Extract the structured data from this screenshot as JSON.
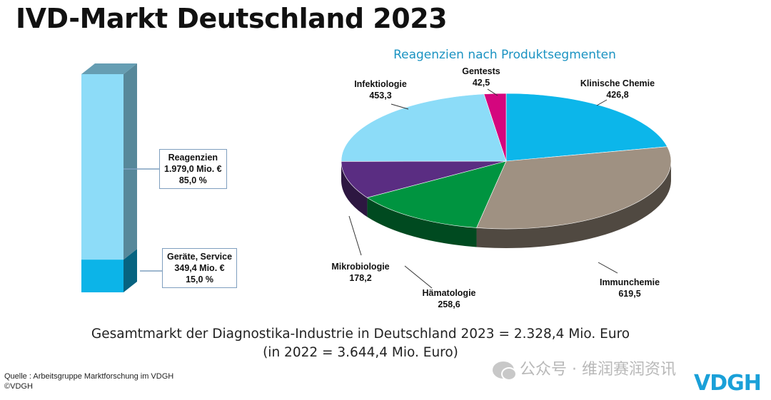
{
  "title": "IVD-Markt Deutschland 2023",
  "summary": {
    "line1": "Gesamtmarkt der Diagnostika-Industrie in Deutschland 2023 = 2.328,4 Mio. Euro",
    "line2": "(in 2022 = 3.644,4 Mio. Euro)"
  },
  "source": {
    "line1": "Quelle : Arbeitsgruppe Marktforschung im VDGH",
    "line2": "©VDGH"
  },
  "watermark": {
    "text": "公众号 · 维润赛润资讯"
  },
  "logo": {
    "text": "VDGH"
  },
  "chart_data": [
    {
      "type": "bar",
      "stacked": true,
      "series": [
        {
          "name": "Geräte, Service",
          "value": 349.4,
          "value_label": "349,4 Mio. €",
          "percent_label": "15,0 %",
          "color": "#0cb4e8"
        },
        {
          "name": "Reagenzien",
          "value": 1979.0,
          "value_label": "1.979,0 Mio. €",
          "percent_label": "85,0 %",
          "color": "#8ddcf8"
        }
      ]
    },
    {
      "type": "pie",
      "title": "Reagenzien nach Produktsegmenten",
      "slices": [
        {
          "name": "Klinische Chemie",
          "value": 426.8,
          "label": "426,8",
          "color": "#0cb6ea"
        },
        {
          "name": "Immunchemie",
          "value": 619.5,
          "label": "619,5",
          "color": "#9f9182"
        },
        {
          "name": "Hämatologie",
          "value": 258.6,
          "label": "258,6",
          "color": "#009440"
        },
        {
          "name": "Mikrobiologie",
          "value": 178.2,
          "label": "178,2",
          "color": "#5a2d82"
        },
        {
          "name": "Infektiologie",
          "value": 453.3,
          "label": "453,3",
          "color": "#8cdcf8"
        },
        {
          "name": "Gentests",
          "value": 42.5,
          "label": "42,5",
          "color": "#d4067e"
        }
      ]
    }
  ]
}
